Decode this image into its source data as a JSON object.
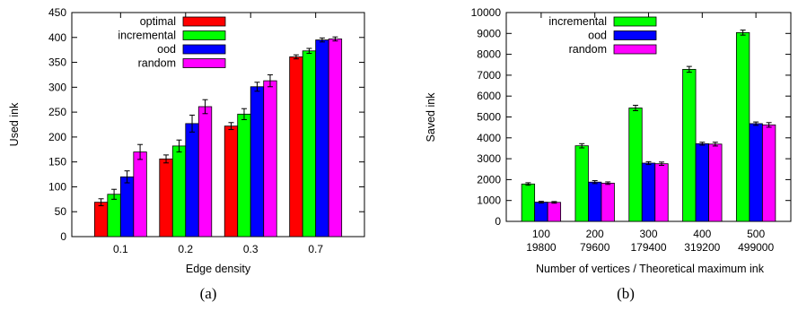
{
  "chart_data": [
    {
      "type": "bar",
      "caption": "(a)",
      "xlabel": "Edge density",
      "ylabel": "Used ink",
      "categories": [
        "0.1",
        "0.2",
        "0.3",
        "0.7"
      ],
      "ylim": [
        0,
        450
      ],
      "yticks": [
        0,
        50,
        100,
        150,
        200,
        250,
        300,
        350,
        400,
        450
      ],
      "error_bars": true,
      "legend_position": "top-left",
      "series": [
        {
          "name": "optimal",
          "color": "#ff0000",
          "values": [
            69,
            156,
            222,
            361
          ],
          "errors": [
            7,
            8,
            7,
            4
          ]
        },
        {
          "name": "incremental",
          "color": "#00ff00",
          "values": [
            85,
            182,
            246,
            373
          ],
          "errors": [
            10,
            12,
            11,
            5
          ]
        },
        {
          "name": "ood",
          "color": "#0000ff",
          "values": [
            120,
            227,
            301,
            395
          ],
          "errors": [
            12,
            17,
            9,
            4
          ]
        },
        {
          "name": "random",
          "color": "#ff00ff",
          "values": [
            170,
            261,
            313,
            397
          ],
          "errors": [
            15,
            14,
            12,
            4
          ]
        }
      ]
    },
    {
      "type": "bar",
      "caption": "(b)",
      "xlabel": "Number of vertices / Theoretical maximum ink",
      "ylabel": "Saved ink",
      "categories": [
        "100",
        "200",
        "300",
        "400",
        "500"
      ],
      "categories_line2": [
        "19800",
        "79600",
        "179400",
        "319200",
        "499000"
      ],
      "ylim": [
        0,
        10000
      ],
      "yticks": [
        0,
        1000,
        2000,
        3000,
        4000,
        5000,
        6000,
        7000,
        8000,
        9000,
        10000
      ],
      "error_bars": true,
      "legend_position": "top-left",
      "series": [
        {
          "name": "incremental",
          "color": "#00ff00",
          "values": [
            1790,
            3620,
            5430,
            7280,
            9040
          ],
          "errors": [
            60,
            100,
            130,
            140,
            120
          ]
        },
        {
          "name": "ood",
          "color": "#0000ff",
          "values": [
            920,
            1880,
            2790,
            3720,
            4680
          ],
          "errors": [
            40,
            70,
            70,
            70,
            80
          ]
        },
        {
          "name": "random",
          "color": "#ff00ff",
          "values": [
            910,
            1830,
            2760,
            3700,
            4620
          ],
          "errors": [
            40,
            60,
            80,
            90,
            110
          ]
        }
      ]
    }
  ]
}
